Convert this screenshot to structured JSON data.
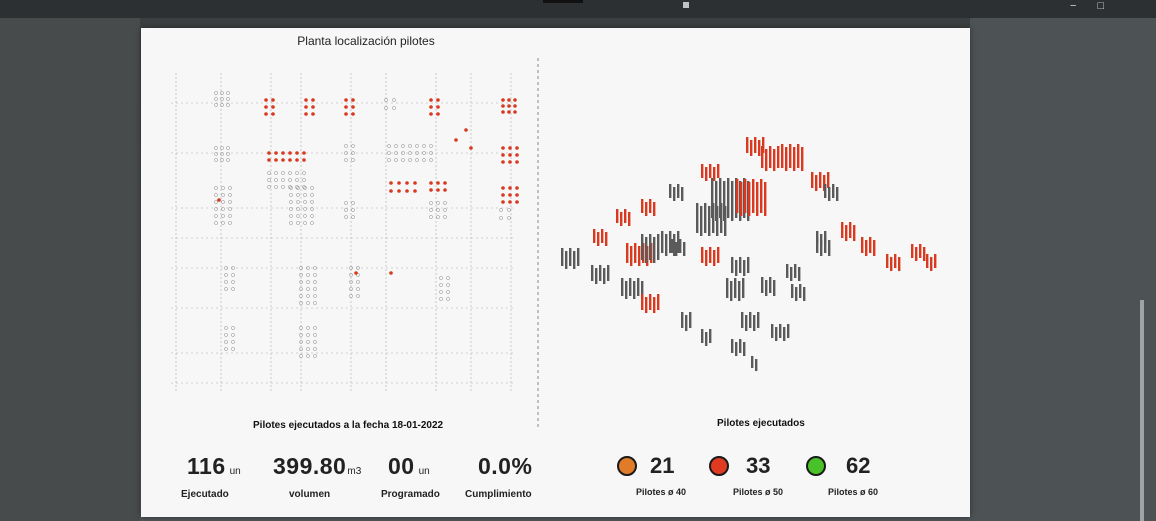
{
  "plan": {
    "title": "Planta localización pilotes"
  },
  "captions": {
    "left": "Pilotes ejecutados a la fecha 18-01-2022",
    "right": "Pilotes ejecutados"
  },
  "kpis": [
    {
      "value": "116",
      "unit": "un",
      "label": "Ejecutado"
    },
    {
      "value": "399.80",
      "unit": "m3",
      "label": "volumen"
    },
    {
      "value": "00",
      "unit": "un",
      "label": "Programado"
    },
    {
      "value": "0.0%",
      "unit": "",
      "label": "Cumplimiento"
    }
  ],
  "diameters": [
    {
      "count": "21",
      "label": "Pilotes ø 40",
      "color": "#e07b2a"
    },
    {
      "count": "33",
      "label": "Pilotes ø 50",
      "color": "#e03a22"
    },
    {
      "count": "62",
      "label": "Pilotes ø 60",
      "color": "#49c22a"
    }
  ],
  "colors": {
    "executed": "#d8391f",
    "pending": "#5a5a5a",
    "grid": "#9a9a9a"
  }
}
